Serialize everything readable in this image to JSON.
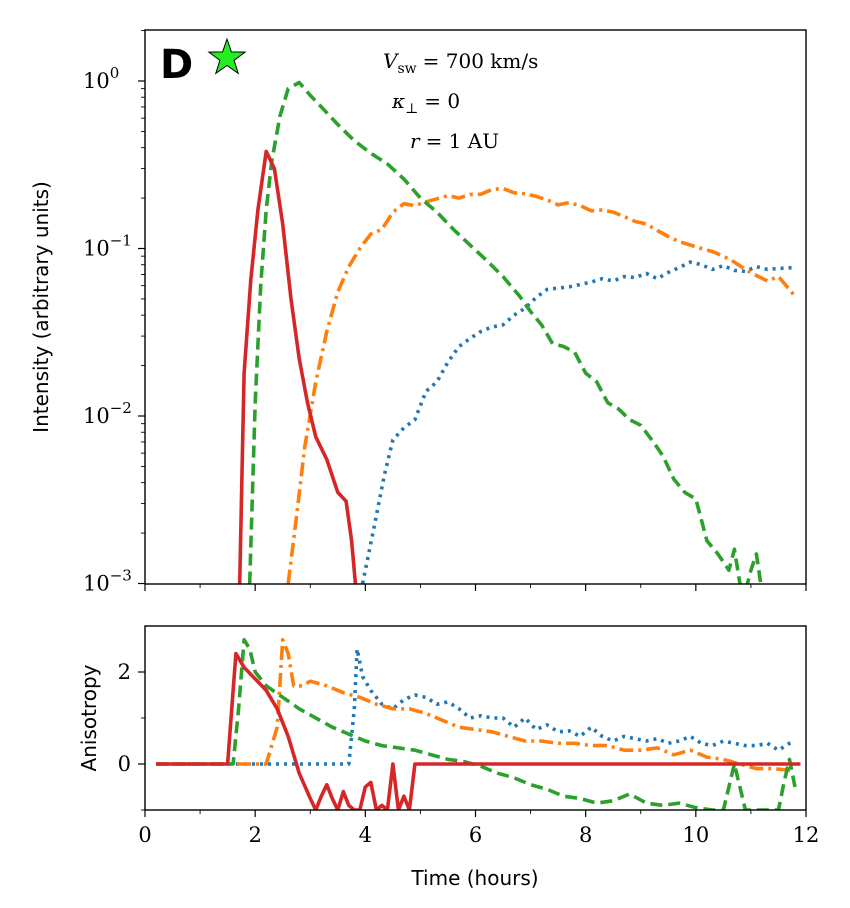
{
  "chart_data": [
    {
      "type": "line",
      "panel": "top",
      "panel_letter": "D",
      "marker": "star",
      "marker_color": "#22ee22",
      "ylabel": "Intensity (arbitrary units)",
      "yscale": "log",
      "ylim": [
        0.001,
        2
      ],
      "xlim": [
        0,
        12
      ],
      "yticks": [
        {
          "base": "10",
          "exp": "0",
          "value": 1
        },
        {
          "base": "10",
          "exp": "−1",
          "value": 0.1
        },
        {
          "base": "10",
          "exp": "−2",
          "value": 0.01
        },
        {
          "base": "10",
          "exp": "−3",
          "value": 0.001
        }
      ],
      "annotations": {
        "vsw_symbol": "V",
        "vsw_sub": "sw",
        "vsw_value": "= 700 km/s",
        "kappa_symbol": "κ",
        "kappa_sub": "⊥",
        "kappa_value": "= 0",
        "r_symbol": "r",
        "r_value": "= 1 AU"
      },
      "series": [
        {
          "name": "blue-dotted",
          "color": "#1f77b4",
          "dash": "3 5",
          "x": [
            3.95,
            4.15,
            4.35,
            4.5,
            4.7,
            4.9,
            5.1,
            5.3,
            5.5,
            5.7,
            5.9,
            6.1,
            6.3,
            6.5,
            6.7,
            6.9,
            7.1,
            7.3,
            7.5,
            7.7,
            7.9,
            8.1,
            8.3,
            8.5,
            8.7,
            8.9,
            9.1,
            9.3,
            9.5,
            9.7,
            9.9,
            10.1,
            10.3,
            10.5,
            10.7,
            10.9,
            11.1,
            11.3,
            11.5,
            11.8
          ],
          "y": [
            0.001,
            0.0021,
            0.0045,
            0.0072,
            0.0085,
            0.0095,
            0.014,
            0.016,
            0.021,
            0.026,
            0.029,
            0.032,
            0.034,
            0.035,
            0.04,
            0.044,
            0.051,
            0.057,
            0.058,
            0.059,
            0.061,
            0.063,
            0.066,
            0.064,
            0.068,
            0.067,
            0.071,
            0.066,
            0.072,
            0.077,
            0.083,
            0.08,
            0.075,
            0.079,
            0.074,
            0.073,
            0.078,
            0.075,
            0.076,
            0.077
          ]
        },
        {
          "name": "orange-dashdot",
          "color": "#ff7f0e",
          "dash": "14 5 3 5",
          "x": [
            2.6,
            2.75,
            2.9,
            3.1,
            3.3,
            3.5,
            3.7,
            3.9,
            4.1,
            4.3,
            4.5,
            4.7,
            4.9,
            5.1,
            5.3,
            5.5,
            5.7,
            5.9,
            6.1,
            6.3,
            6.5,
            6.7,
            6.9,
            7.1,
            7.3,
            7.5,
            7.7,
            7.9,
            8.1,
            8.3,
            8.5,
            8.7,
            8.9,
            9.1,
            9.3,
            9.5,
            9.7,
            9.9,
            10.1,
            10.3,
            10.5,
            10.7,
            10.9,
            11.1,
            11.3,
            11.5,
            11.8
          ],
          "y": [
            0.001,
            0.0025,
            0.0065,
            0.016,
            0.032,
            0.055,
            0.078,
            0.1,
            0.122,
            0.13,
            0.165,
            0.185,
            0.18,
            0.19,
            0.198,
            0.207,
            0.2,
            0.21,
            0.211,
            0.225,
            0.228,
            0.215,
            0.212,
            0.205,
            0.195,
            0.182,
            0.188,
            0.18,
            0.168,
            0.17,
            0.165,
            0.155,
            0.145,
            0.14,
            0.128,
            0.118,
            0.11,
            0.105,
            0.1,
            0.096,
            0.09,
            0.083,
            0.075,
            0.069,
            0.064,
            0.068,
            0.052
          ]
        },
        {
          "name": "green-dashed",
          "color": "#2ca02c",
          "dash": "12 6",
          "x": [
            1.9,
            2.0,
            2.1,
            2.2,
            2.3,
            2.45,
            2.6,
            2.8,
            3.0,
            3.2,
            3.5,
            3.8,
            4.1,
            4.4,
            4.7,
            5.0,
            5.3,
            5.6,
            5.9,
            6.2,
            6.5,
            6.8,
            7.0,
            7.2,
            7.4,
            7.6,
            7.8,
            8.0,
            8.2,
            8.4,
            8.6,
            8.8,
            9.0,
            9.2,
            9.4,
            9.6,
            9.8,
            10.0,
            10.2,
            10.4,
            10.6,
            10.7,
            10.8,
            10.9,
            11.0,
            11.1,
            11.2
          ],
          "y": [
            0.001,
            0.012,
            0.06,
            0.17,
            0.33,
            0.62,
            0.9,
            0.98,
            0.82,
            0.7,
            0.55,
            0.44,
            0.37,
            0.32,
            0.26,
            0.2,
            0.165,
            0.13,
            0.105,
            0.085,
            0.068,
            0.052,
            0.042,
            0.035,
            0.027,
            0.026,
            0.024,
            0.018,
            0.016,
            0.012,
            0.011,
            0.0095,
            0.0088,
            0.0072,
            0.0058,
            0.0042,
            0.0035,
            0.0032,
            0.0018,
            0.0015,
            0.0012,
            0.0016,
            0.001,
            0.0009,
            0.0012,
            0.0015,
            0.0009
          ]
        },
        {
          "name": "red-solid",
          "color": "#d62728",
          "dash": "",
          "x": [
            1.72,
            1.8,
            1.92,
            2.05,
            2.2,
            2.35,
            2.5,
            2.65,
            2.8,
            2.95,
            3.1,
            3.3,
            3.5,
            3.65,
            3.75,
            3.82
          ],
          "y": [
            0.001,
            0.018,
            0.065,
            0.17,
            0.38,
            0.3,
            0.14,
            0.05,
            0.022,
            0.012,
            0.0075,
            0.0055,
            0.0035,
            0.0031,
            0.0018,
            0.001
          ]
        }
      ]
    },
    {
      "type": "line",
      "panel": "bottom",
      "xlabel": "Time (hours)",
      "ylabel": "Anisotropy",
      "xlim": [
        0,
        12
      ],
      "ylim": [
        -1,
        3
      ],
      "xticks": [
        "0",
        "2",
        "4",
        "6",
        "8",
        "10",
        "12"
      ],
      "yticks": [
        "0",
        "2"
      ],
      "series": [
        {
          "name": "blue-dotted",
          "color": "#1f77b4",
          "dash": "3 5",
          "x": [
            0.2,
            3.7,
            3.8,
            3.85,
            3.95,
            4.1,
            4.3,
            4.5,
            4.7,
            4.9,
            5.1,
            5.3,
            5.5,
            5.7,
            5.9,
            6.1,
            6.3,
            6.5,
            6.7,
            6.9,
            7.1,
            7.3,
            7.5,
            7.7,
            7.9,
            8.1,
            8.3,
            8.5,
            8.7,
            8.9,
            9.1,
            9.3,
            9.5,
            9.7,
            9.9,
            10.1,
            10.3,
            10.5,
            10.7,
            10.9,
            11.1,
            11.3,
            11.5,
            11.7,
            11.8
          ],
          "y": [
            0,
            0,
            1.2,
            2.5,
            1.9,
            1.6,
            1.3,
            1.2,
            1.4,
            1.5,
            1.45,
            1.3,
            1.35,
            1.2,
            1.0,
            1.05,
            1.0,
            1.0,
            0.8,
            1.0,
            0.75,
            0.85,
            0.7,
            0.72,
            0.6,
            0.8,
            0.6,
            0.5,
            0.6,
            0.55,
            0.5,
            0.55,
            0.45,
            0.5,
            0.6,
            0.45,
            0.4,
            0.5,
            0.45,
            0.4,
            0.4,
            0.45,
            0.3,
            0.45,
            0.5
          ]
        },
        {
          "name": "orange-dashdot",
          "color": "#ff7f0e",
          "dash": "14 5 3 5",
          "x": [
            0.2,
            2.2,
            2.4,
            2.5,
            2.6,
            2.7,
            2.85,
            3.0,
            3.3,
            3.6,
            3.9,
            4.2,
            4.5,
            4.8,
            5.1,
            5.4,
            5.7,
            6.0,
            6.3,
            6.6,
            6.9,
            7.2,
            7.5,
            7.8,
            8.1,
            8.4,
            8.7,
            9.0,
            9.3,
            9.6,
            9.9,
            10.2,
            10.5,
            10.8,
            11.1,
            11.4,
            11.8
          ],
          "y": [
            0,
            0,
            0.8,
            2.7,
            2.4,
            1.7,
            1.7,
            1.8,
            1.7,
            1.55,
            1.45,
            1.3,
            1.2,
            1.2,
            1.1,
            0.95,
            0.8,
            0.75,
            0.7,
            0.6,
            0.5,
            0.5,
            0.45,
            0.45,
            0.4,
            0.4,
            0.3,
            0.3,
            0.35,
            0.2,
            0.3,
            0.15,
            0.1,
            0.0,
            -0.1,
            -0.1,
            -0.15
          ]
        },
        {
          "name": "green-dashed",
          "color": "#2ca02c",
          "dash": "12 6",
          "x": [
            0.2,
            1.6,
            1.7,
            1.8,
            1.9,
            2.0,
            2.2,
            2.5,
            2.8,
            3.1,
            3.4,
            3.7,
            4.0,
            4.3,
            4.6,
            4.9,
            5.2,
            5.5,
            5.8,
            6.1,
            6.4,
            6.7,
            7.0,
            7.3,
            7.6,
            7.9,
            8.2,
            8.5,
            8.8,
            9.1,
            9.4,
            9.7,
            10.0,
            10.3,
            10.5,
            10.6,
            10.7,
            10.8,
            10.9,
            11.1,
            11.3,
            11.5,
            11.6,
            11.7,
            11.8
          ],
          "y": [
            0,
            0,
            1.2,
            2.7,
            2.5,
            2.0,
            1.7,
            1.45,
            1.2,
            1.0,
            0.8,
            0.65,
            0.5,
            0.4,
            0.35,
            0.3,
            0.2,
            0.1,
            0.05,
            -0.05,
            -0.2,
            -0.3,
            -0.45,
            -0.55,
            -0.7,
            -0.75,
            -0.85,
            -0.8,
            -0.65,
            -0.85,
            -0.9,
            -0.85,
            -0.95,
            -1.0,
            -1.0,
            -0.5,
            0.0,
            -0.5,
            -1.0,
            -1.0,
            -1.0,
            -1.0,
            -0.4,
            0.1,
            -0.5
          ]
        },
        {
          "name": "red-solid",
          "color": "#d62728",
          "dash": "",
          "x": [
            0.2,
            1.5,
            1.65,
            1.8,
            2.0,
            2.2,
            2.4,
            2.6,
            2.8,
            3.0,
            3.1,
            3.2,
            3.3,
            3.4,
            3.5,
            3.6,
            3.7,
            3.8,
            3.9,
            4.0,
            4.1,
            4.2,
            4.3,
            4.4,
            4.5,
            4.6,
            4.7,
            4.8,
            4.9,
            11.9
          ],
          "y": [
            0,
            0,
            2.4,
            2.1,
            1.85,
            1.6,
            1.2,
            0.6,
            -0.2,
            -0.75,
            -1.0,
            -0.7,
            -0.45,
            -0.75,
            -1.0,
            -0.6,
            -0.9,
            -1.0,
            -1.0,
            -0.5,
            -0.4,
            -1.0,
            -0.9,
            -1.0,
            0.0,
            -1.0,
            -0.7,
            -1.0,
            0.0,
            0.0
          ]
        }
      ]
    }
  ]
}
